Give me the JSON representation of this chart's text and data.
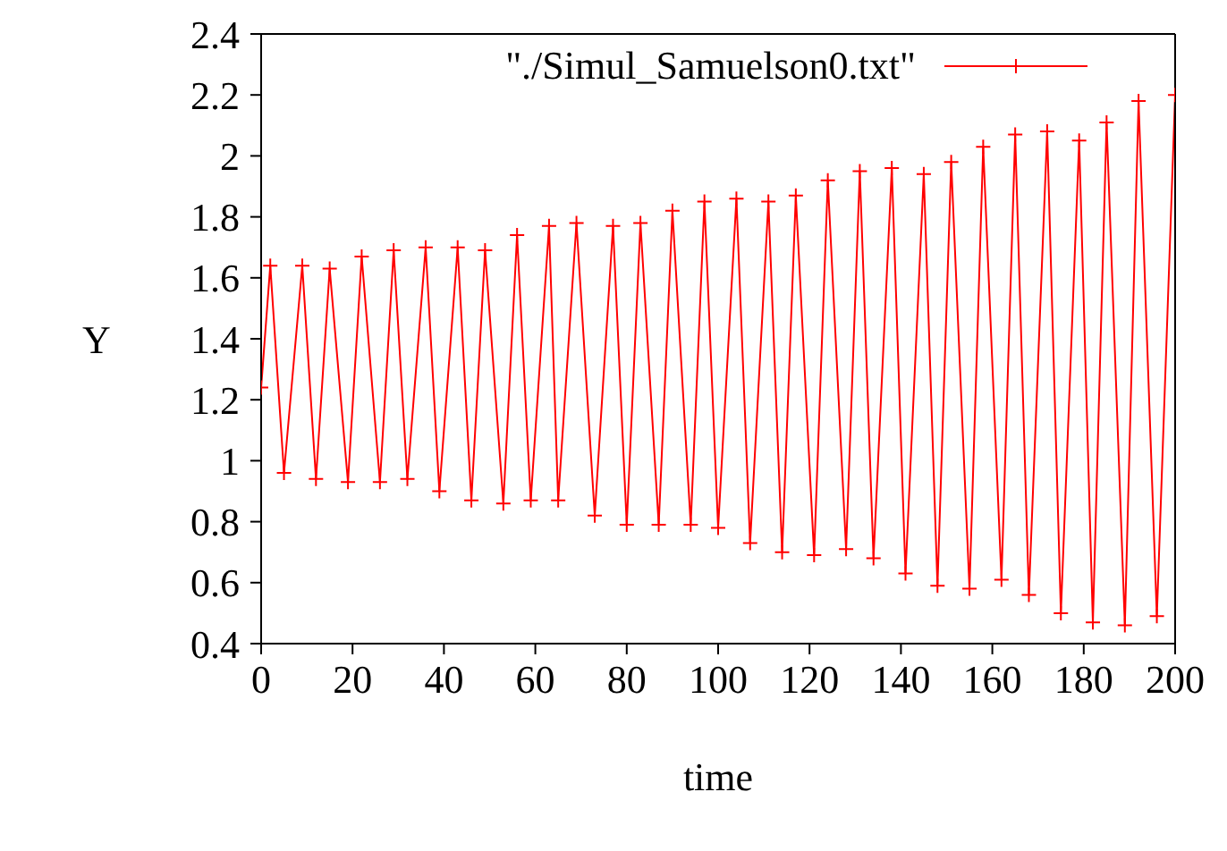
{
  "chart_data": {
    "type": "line",
    "xlabel": "time",
    "ylabel": "Y",
    "xlim": [
      0,
      200
    ],
    "xticks": [
      0,
      20,
      40,
      60,
      80,
      100,
      120,
      140,
      160,
      180,
      200
    ],
    "ylim": [
      0.4,
      2.4
    ],
    "yticks": [
      0.4,
      0.6,
      0.8,
      1,
      1.2,
      1.4,
      1.6,
      1.8,
      2,
      2.2,
      2.4
    ],
    "x": [
      0,
      2,
      5,
      9,
      12,
      15,
      19,
      22,
      26,
      29,
      32,
      36,
      39,
      43,
      46,
      49,
      53,
      56,
      59,
      63,
      65,
      69,
      73,
      77,
      80,
      83,
      87,
      90,
      94,
      97,
      100,
      104,
      107,
      111,
      114,
      117,
      121,
      124,
      128,
      131,
      134,
      138,
      141,
      145,
      148,
      151,
      155,
      158,
      162,
      165,
      168,
      172,
      175,
      179,
      182,
      185,
      189,
      192,
      196,
      200
    ],
    "series": [
      {
        "name": "\"./Simul_Samuelson0.txt\"",
        "color": "#ff0000",
        "values": [
          1.24,
          1.64,
          0.96,
          1.64,
          0.94,
          1.63,
          0.93,
          1.67,
          0.93,
          1.69,
          0.94,
          1.7,
          0.9,
          1.7,
          0.87,
          1.69,
          0.86,
          1.74,
          0.87,
          1.77,
          0.87,
          1.78,
          0.82,
          1.77,
          0.79,
          1.78,
          0.79,
          1.82,
          0.79,
          1.85,
          0.78,
          1.86,
          0.73,
          1.85,
          0.7,
          1.87,
          0.69,
          1.92,
          0.71,
          1.95,
          0.68,
          1.96,
          0.63,
          1.94,
          0.59,
          1.98,
          0.58,
          2.03,
          0.61,
          2.07,
          0.56,
          2.08,
          0.5,
          2.05,
          0.47,
          2.11,
          0.46,
          2.18,
          0.49,
          2.2
        ]
      }
    ],
    "marker": "cross",
    "legend": "top right"
  }
}
